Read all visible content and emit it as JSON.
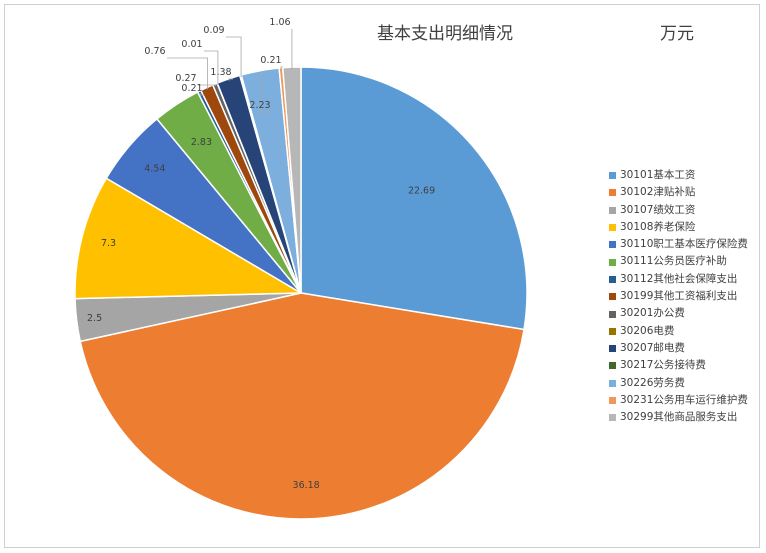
{
  "chart_data": {
    "type": "pie",
    "title": "基本支出明细情况",
    "unit": "万元",
    "legend_position": "right",
    "start_angle": "12 o'clock, clockwise",
    "slices": [
      {
        "name": "30101基本工资",
        "value": 22.69,
        "label": "22.69",
        "color": "#5b9bd5"
      },
      {
        "name": "30102津贴补贴",
        "value": 36.18,
        "label": "36.18",
        "color": "#ed7d31"
      },
      {
        "name": "30107绩效工资",
        "value": 2.5,
        "label": "2.5",
        "color": "#a5a5a5"
      },
      {
        "name": "30108养老保险",
        "value": 7.3,
        "label": "7.3",
        "color": "#ffc000"
      },
      {
        "name": "30110职工基本医疗保险费",
        "value": 4.54,
        "label": "4.54",
        "color": "#4472c4"
      },
      {
        "name": "30111公务员医疗补助",
        "value": 2.83,
        "label": "2.83",
        "color": "#70ad47"
      },
      {
        "name": "30112其他社会保障支出",
        "value": 0.21,
        "label": "0.21",
        "color": "#255e91"
      },
      {
        "name": "30199其他工资福利支出",
        "value": 0.76,
        "label": "0.76",
        "color": "#9e480e"
      },
      {
        "name": "30201办公费",
        "value": 0.27,
        "label": "0.27",
        "color": "#636363"
      },
      {
        "name": "30206电费",
        "value": 0.01,
        "label": "0.01",
        "color": "#997300"
      },
      {
        "name": "30207邮电费",
        "value": 1.38,
        "label": "1.38",
        "color": "#264478"
      },
      {
        "name": "30217公务接待费",
        "value": 0.09,
        "label": "0.09",
        "color": "#43682b"
      },
      {
        "name": "30226劳务费",
        "value": 2.23,
        "label": "2.23",
        "color": "#7cafdd"
      },
      {
        "name": "30231公务用车运行维护费",
        "value": 0.21,
        "label": "0.21",
        "color": "#f1975a"
      },
      {
        "name": "30299其他商品服务支出",
        "value": 1.06,
        "label": "1.06",
        "color": "#b7b7b7"
      }
    ]
  }
}
